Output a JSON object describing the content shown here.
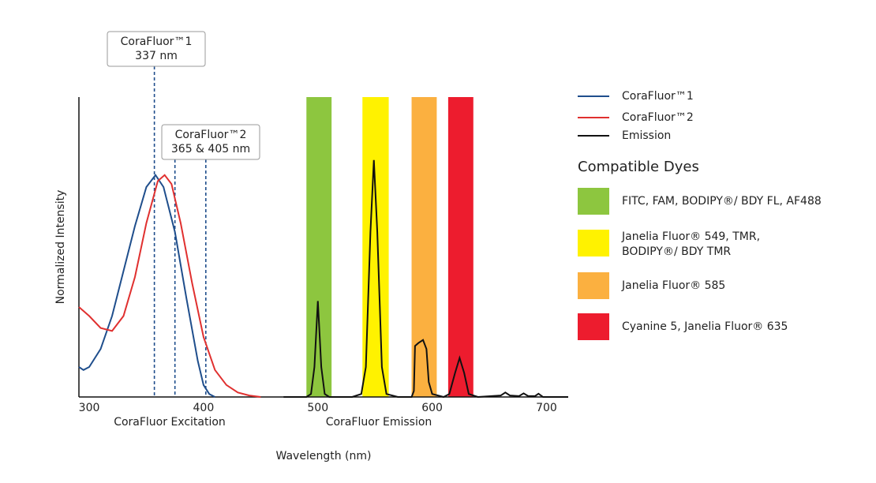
{
  "chart_data": {
    "type": "line",
    "xlabel": "Wavelength (nm)",
    "ylabel": "Normalized Intensity",
    "section_labels": [
      "CoraFluor Excitation",
      "CoraFluor Emission"
    ],
    "xlim": [
      291,
      719
    ],
    "ylim": [
      0,
      1
    ],
    "xticks": [
      300,
      400,
      500,
      600,
      700
    ],
    "series": [
      {
        "name": "CoraFluor™1",
        "color": "#1f4e8c",
        "x": [
          291,
          295,
          300,
          310,
          320,
          330,
          340,
          350,
          358,
          365,
          375,
          385,
          395,
          400,
          405,
          410
        ],
        "values": [
          0.1,
          0.09,
          0.1,
          0.16,
          0.27,
          0.42,
          0.57,
          0.7,
          0.74,
          0.7,
          0.55,
          0.33,
          0.12,
          0.04,
          0.01,
          0
        ]
      },
      {
        "name": "CoraFluor™2",
        "color": "#e0302f",
        "x": [
          291,
          300,
          310,
          320,
          330,
          340,
          350,
          360,
          366,
          372,
          380,
          390,
          400,
          410,
          420,
          430,
          440,
          450
        ],
        "values": [
          0.3,
          0.27,
          0.23,
          0.22,
          0.27,
          0.4,
          0.58,
          0.72,
          0.74,
          0.71,
          0.58,
          0.38,
          0.2,
          0.09,
          0.04,
          0.015,
          0.005,
          0
        ]
      },
      {
        "name": "Emission",
        "color": "#111111",
        "x": [
          470,
          490,
          494,
          497,
          500,
          503,
          506,
          510,
          530,
          538,
          542,
          546,
          549,
          552,
          556,
          560,
          570,
          582,
          584,
          585,
          588,
          592,
          595,
          597,
          600,
          610,
          615,
          620,
          624,
          628,
          632,
          640,
          660,
          664,
          668,
          676,
          680,
          684,
          690,
          693,
          697,
          719
        ],
        "values": [
          0,
          0,
          0.01,
          0.1,
          0.32,
          0.1,
          0.01,
          0,
          0,
          0.01,
          0.1,
          0.55,
          0.79,
          0.55,
          0.1,
          0.01,
          0,
          0,
          0.02,
          0.17,
          0.18,
          0.19,
          0.16,
          0.05,
          0.01,
          0,
          0.01,
          0.08,
          0.13,
          0.08,
          0.01,
          0,
          0.005,
          0.015,
          0.005,
          0.003,
          0.012,
          0.003,
          0.003,
          0.011,
          0,
          0
        ]
      }
    ],
    "legend_title": "Compatible Dyes",
    "bands": [
      {
        "name": "FITC, FAM, BODIPY®/ BDY FL, AF488",
        "color": "#8dc63f",
        "range": [
          490,
          512
        ]
      },
      {
        "name": [
          "Janelia Fluor® 549, TMR,",
          "BODIPY®/ BDY TMR"
        ],
        "color": "#fff200",
        "range": [
          539,
          562
        ]
      },
      {
        "name": "Janelia Fluor® 585",
        "color": "#fbb040",
        "range": [
          582,
          604
        ]
      },
      {
        "name": "Cyanine 5, Janelia Fluor® 635",
        "color": "#ed1c2e",
        "range": [
          614,
          636
        ]
      }
    ],
    "annotations": [
      {
        "lines": [
          "CoraFluor™1",
          "337 nm"
        ],
        "x": [
          357
        ]
      },
      {
        "lines": [
          "CoraFluor™2",
          "365 & 405 nm"
        ],
        "x": [
          375,
          402
        ]
      }
    ]
  }
}
